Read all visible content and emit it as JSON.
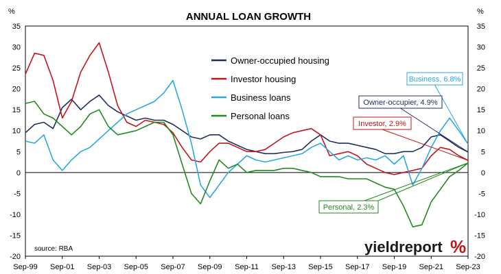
{
  "chart_data": {
    "type": "line",
    "title": "ANNUAL LOAN GROWTH",
    "y_unit_left": "%",
    "y_unit_right": "%",
    "ylim": [
      -20,
      35
    ],
    "yticks": [
      35,
      30,
      25,
      20,
      15,
      10,
      5,
      0,
      -5,
      -10,
      -15,
      -20
    ],
    "xlim": [
      "1999-09",
      "2023-09"
    ],
    "xticks": [
      "Sep-99",
      "Sep-01",
      "Sep-03",
      "Sep-05",
      "Sep-07",
      "Sep-09",
      "Sep-11",
      "Sep-13",
      "Sep-15",
      "Sep-17",
      "Sep-19",
      "Sep-21",
      "Sep-23"
    ],
    "grid": false,
    "legend_position": "center-top",
    "source": "source: RBA",
    "brand": "yieldreport",
    "brand_symbol": "%",
    "series": [
      {
        "name": "Owner-occupied housing",
        "color": "#1f2d5e",
        "points": [
          [
            "1999-09",
            9.5
          ],
          [
            "2000-03",
            11.5
          ],
          [
            "2000-09",
            12
          ],
          [
            "2001-03",
            10.5
          ],
          [
            "2001-09",
            15.5
          ],
          [
            "2002-03",
            17.5
          ],
          [
            "2002-09",
            15
          ],
          [
            "2003-03",
            17
          ],
          [
            "2003-09",
            18.5
          ],
          [
            "2004-03",
            16
          ],
          [
            "2004-09",
            14.5
          ],
          [
            "2005-03",
            13.5
          ],
          [
            "2005-09",
            12.5
          ],
          [
            "2006-03",
            13
          ],
          [
            "2006-09",
            12.5
          ],
          [
            "2007-03",
            12.5
          ],
          [
            "2007-09",
            11.5
          ],
          [
            "2008-03",
            10
          ],
          [
            "2008-09",
            8.5
          ],
          [
            "2009-03",
            8
          ],
          [
            "2009-09",
            9
          ],
          [
            "2010-03",
            9
          ],
          [
            "2010-09",
            7.5
          ],
          [
            "2011-03",
            6.5
          ],
          [
            "2011-09",
            5.5
          ],
          [
            "2012-03",
            5
          ],
          [
            "2012-09",
            4.5
          ],
          [
            "2013-03",
            4.5
          ],
          [
            "2013-09",
            4.8
          ],
          [
            "2014-03",
            5
          ],
          [
            "2014-09",
            5.5
          ],
          [
            "2015-03",
            7.5
          ],
          [
            "2015-09",
            9
          ],
          [
            "2016-03",
            7.5
          ],
          [
            "2016-09",
            7
          ],
          [
            "2017-03",
            7
          ],
          [
            "2017-09",
            6.5
          ],
          [
            "2018-03",
            6
          ],
          [
            "2018-09",
            5.5
          ],
          [
            "2019-03",
            4.5
          ],
          [
            "2019-09",
            4.5
          ],
          [
            "2020-03",
            5
          ],
          [
            "2020-09",
            5
          ],
          [
            "2021-03",
            6
          ],
          [
            "2021-09",
            8.5
          ],
          [
            "2022-03",
            9
          ],
          [
            "2022-09",
            7.5
          ],
          [
            "2023-03",
            6
          ],
          [
            "2023-09",
            4.9
          ]
        ]
      },
      {
        "name": "Investor housing",
        "color": "#c0151b",
        "points": [
          [
            "1999-09",
            23.5
          ],
          [
            "2000-03",
            28.5
          ],
          [
            "2000-09",
            28
          ],
          [
            "2001-03",
            22
          ],
          [
            "2001-09",
            13
          ],
          [
            "2002-03",
            17
          ],
          [
            "2002-09",
            24
          ],
          [
            "2003-03",
            28
          ],
          [
            "2003-09",
            31
          ],
          [
            "2004-03",
            24
          ],
          [
            "2004-09",
            16
          ],
          [
            "2005-03",
            12
          ],
          [
            "2005-09",
            11
          ],
          [
            "2006-03",
            12.5
          ],
          [
            "2006-09",
            12
          ],
          [
            "2007-03",
            11.5
          ],
          [
            "2007-09",
            9.5
          ],
          [
            "2008-03",
            6
          ],
          [
            "2008-09",
            3
          ],
          [
            "2009-03",
            2.5
          ],
          [
            "2009-09",
            5
          ],
          [
            "2010-03",
            7
          ],
          [
            "2010-09",
            7
          ],
          [
            "2011-03",
            6
          ],
          [
            "2011-09",
            5
          ],
          [
            "2012-03",
            5
          ],
          [
            "2012-09",
            5.5
          ],
          [
            "2013-03",
            7
          ],
          [
            "2013-09",
            8.5
          ],
          [
            "2014-03",
            9.5
          ],
          [
            "2014-09",
            10
          ],
          [
            "2015-03",
            10.5
          ],
          [
            "2015-09",
            9
          ],
          [
            "2016-03",
            4
          ],
          [
            "2016-09",
            4.5
          ],
          [
            "2017-03",
            5
          ],
          [
            "2017-09",
            4
          ],
          [
            "2018-03",
            2
          ],
          [
            "2018-09",
            1
          ],
          [
            "2019-03",
            0
          ],
          [
            "2019-09",
            -0.5
          ],
          [
            "2020-03",
            0
          ],
          [
            "2020-09",
            0.5
          ],
          [
            "2021-03",
            1
          ],
          [
            "2021-09",
            4
          ],
          [
            "2022-03",
            6
          ],
          [
            "2022-09",
            5.5
          ],
          [
            "2023-03",
            4
          ],
          [
            "2023-09",
            2.9
          ]
        ]
      },
      {
        "name": "Business loans",
        "color": "#2aa8e0",
        "points": [
          [
            "1999-09",
            7.5
          ],
          [
            "2000-03",
            7
          ],
          [
            "2000-09",
            9
          ],
          [
            "2001-03",
            3
          ],
          [
            "2001-09",
            0.5
          ],
          [
            "2002-03",
            3
          ],
          [
            "2002-09",
            5
          ],
          [
            "2003-03",
            6
          ],
          [
            "2003-09",
            8
          ],
          [
            "2004-03",
            10
          ],
          [
            "2004-09",
            12
          ],
          [
            "2005-03",
            14
          ],
          [
            "2005-09",
            15
          ],
          [
            "2006-03",
            16
          ],
          [
            "2006-09",
            17
          ],
          [
            "2007-03",
            19
          ],
          [
            "2007-09",
            22
          ],
          [
            "2008-03",
            15
          ],
          [
            "2008-09",
            7
          ],
          [
            "2009-03",
            -3
          ],
          [
            "2009-09",
            -6
          ],
          [
            "2010-03",
            -3
          ],
          [
            "2010-09",
            0
          ],
          [
            "2011-03",
            2
          ],
          [
            "2011-09",
            4
          ],
          [
            "2012-03",
            3
          ],
          [
            "2012-09",
            2.5
          ],
          [
            "2013-03",
            3
          ],
          [
            "2013-09",
            3.5
          ],
          [
            "2014-03",
            4
          ],
          [
            "2014-09",
            4.5
          ],
          [
            "2015-03",
            6
          ],
          [
            "2015-09",
            7
          ],
          [
            "2016-03",
            5
          ],
          [
            "2016-09",
            3
          ],
          [
            "2017-03",
            4
          ],
          [
            "2017-09",
            3
          ],
          [
            "2018-03",
            3.5
          ],
          [
            "2018-09",
            3
          ],
          [
            "2019-03",
            4
          ],
          [
            "2019-09",
            2
          ],
          [
            "2020-03",
            4
          ],
          [
            "2020-09",
            -3
          ],
          [
            "2021-03",
            1
          ],
          [
            "2021-09",
            6
          ],
          [
            "2022-03",
            10
          ],
          [
            "2022-09",
            13
          ],
          [
            "2023-03",
            10
          ],
          [
            "2023-09",
            6.8
          ]
        ]
      },
      {
        "name": "Personal loans",
        "color": "#1f8a1f",
        "points": [
          [
            "1999-09",
            16.5
          ],
          [
            "2000-03",
            17
          ],
          [
            "2000-09",
            14
          ],
          [
            "2001-03",
            13
          ],
          [
            "2001-09",
            11
          ],
          [
            "2002-03",
            9
          ],
          [
            "2002-09",
            11
          ],
          [
            "2003-03",
            14
          ],
          [
            "2003-09",
            15
          ],
          [
            "2004-03",
            11
          ],
          [
            "2004-09",
            9
          ],
          [
            "2005-03",
            9.5
          ],
          [
            "2005-09",
            10
          ],
          [
            "2006-03",
            11
          ],
          [
            "2006-09",
            12
          ],
          [
            "2007-03",
            12
          ],
          [
            "2007-09",
            9
          ],
          [
            "2008-03",
            2
          ],
          [
            "2008-09",
            -5
          ],
          [
            "2009-03",
            -7.5
          ],
          [
            "2009-09",
            -2
          ],
          [
            "2010-03",
            3
          ],
          [
            "2010-09",
            1
          ],
          [
            "2011-03",
            2
          ],
          [
            "2011-09",
            0
          ],
          [
            "2012-03",
            0.5
          ],
          [
            "2012-09",
            0.5
          ],
          [
            "2013-03",
            0.5
          ],
          [
            "2013-09",
            1
          ],
          [
            "2014-03",
            1
          ],
          [
            "2014-09",
            0.5
          ],
          [
            "2015-03",
            0
          ],
          [
            "2015-09",
            -1
          ],
          [
            "2016-03",
            -1
          ],
          [
            "2016-09",
            -1
          ],
          [
            "2017-03",
            -1.5
          ],
          [
            "2017-09",
            -1.5
          ],
          [
            "2018-03",
            -1.5
          ],
          [
            "2018-09",
            -2.5
          ],
          [
            "2019-03",
            -3.5
          ],
          [
            "2019-09",
            -4
          ],
          [
            "2020-03",
            -8
          ],
          [
            "2020-09",
            -13
          ],
          [
            "2021-03",
            -12.5
          ],
          [
            "2021-09",
            -7
          ],
          [
            "2022-03",
            -4
          ],
          [
            "2022-09",
            -1
          ],
          [
            "2023-03",
            0.5
          ],
          [
            "2023-09",
            2.3
          ]
        ]
      }
    ],
    "callouts": [
      {
        "label": "Business, 6.8%",
        "series": "Business loans",
        "color": "#2aa8e0"
      },
      {
        "label": "Owner-occupier, 4.9%",
        "series": "Owner-occupied housing",
        "color": "#1f2d5e"
      },
      {
        "label": "Investor, 2.9%",
        "series": "Investor housing",
        "color": "#c0151b"
      },
      {
        "label": "Personal, 2.3%",
        "series": "Personal loans",
        "color": "#1f8a1f"
      }
    ]
  }
}
